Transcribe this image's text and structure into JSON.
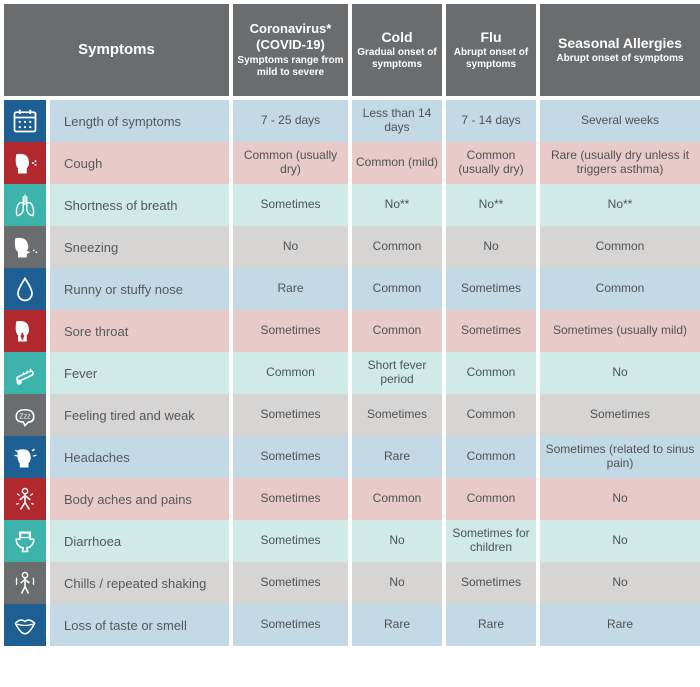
{
  "colors": {
    "header_bg": "#6a6c6e",
    "row_blue": "#c3d9e5",
    "row_pink": "#e8cbc8",
    "row_teal": "#d0eae7",
    "row_grey": "#d6d5d4",
    "icon_navy": "#1d5e93",
    "icon_red": "#b2282f",
    "icon_teal": "#3cb4ac",
    "icon_grey": "#6a6c6e"
  },
  "header": {
    "symptoms": {
      "title": "Symptoms",
      "title_fontsize": 15
    },
    "col1": {
      "title": "Coronavirus*\n(COVID-19)",
      "sub": "Symptoms range from mild to severe",
      "title_fontsize": 13
    },
    "col2": {
      "title": "Cold",
      "sub": "Gradual onset of symptoms",
      "title_fontsize": 14
    },
    "col3": {
      "title": "Flu",
      "sub": "Abrupt onset of symptoms",
      "title_fontsize": 14
    },
    "col4": {
      "title": "Seasonal Allergies",
      "sub": "Abrupt onset of symptoms",
      "title_fontsize": 14
    }
  },
  "rows": [
    {
      "icon": "calendar",
      "icon_bg": "icon_navy",
      "row_bg": "row_blue",
      "label": "Length of symptoms",
      "c1": "7 - 25 days",
      "c2": "Less than 14 days",
      "c3": "7 - 14 days",
      "c4": "Several weeks"
    },
    {
      "icon": "cough",
      "icon_bg": "icon_red",
      "row_bg": "row_pink",
      "label": "Cough",
      "c1": "Common (usually dry)",
      "c2": "Common (mild)",
      "c3": "Common (usually dry)",
      "c4": "Rare (usually dry unless it triggers asthma)"
    },
    {
      "icon": "lungs",
      "icon_bg": "icon_teal",
      "row_bg": "row_teal",
      "label": "Shortness of breath",
      "c1": "Sometimes",
      "c2": "No**",
      "c3": "No**",
      "c4": "No**"
    },
    {
      "icon": "sneeze",
      "icon_bg": "icon_grey",
      "row_bg": "row_grey",
      "label": "Sneezing",
      "c1": "No",
      "c2": "Common",
      "c3": "No",
      "c4": "Common"
    },
    {
      "icon": "drop",
      "icon_bg": "icon_navy",
      "row_bg": "row_blue",
      "label": "Runny or stuffy nose",
      "c1": "Rare",
      "c2": "Common",
      "c3": "Sometimes",
      "c4": "Common"
    },
    {
      "icon": "throat",
      "icon_bg": "icon_red",
      "row_bg": "row_pink",
      "label": "Sore throat",
      "c1": "Sometimes",
      "c2": "Common",
      "c3": "Sometimes",
      "c4": "Sometimes (usually mild)"
    },
    {
      "icon": "thermo",
      "icon_bg": "icon_teal",
      "row_bg": "row_teal",
      "label": "Fever",
      "c1": "Common",
      "c2": "Short fever period",
      "c3": "Common",
      "c4": "No"
    },
    {
      "icon": "tired",
      "icon_bg": "icon_grey",
      "row_bg": "row_grey",
      "label": "Feeling tired and weak",
      "c1": "Sometimes",
      "c2": "Sometimes",
      "c3": "Common",
      "c4": "Sometimes"
    },
    {
      "icon": "head",
      "icon_bg": "icon_navy",
      "row_bg": "row_blue",
      "label": "Headaches",
      "c1": "Sometimes",
      "c2": "Rare",
      "c3": "Common",
      "c4": "Sometimes (related to sinus pain)"
    },
    {
      "icon": "body",
      "icon_bg": "icon_red",
      "row_bg": "row_pink",
      "label": "Body aches and pains",
      "c1": "Sometimes",
      "c2": "Common",
      "c3": "Common",
      "c4": "No"
    },
    {
      "icon": "toilet",
      "icon_bg": "icon_teal",
      "row_bg": "row_teal",
      "label": "Diarrhoea",
      "c1": "Sometimes",
      "c2": "No",
      "c3": "Sometimes for children",
      "c4": "No"
    },
    {
      "icon": "chills",
      "icon_bg": "icon_grey",
      "row_bg": "row_grey",
      "label": "Chills / repeated shaking",
      "c1": "Sometimes",
      "c2": "No",
      "c3": "Sometimes",
      "c4": "No"
    },
    {
      "icon": "mouth",
      "icon_bg": "icon_navy",
      "row_bg": "row_blue",
      "label": "Loss of taste or smell",
      "c1": "Sometimes",
      "c2": "Rare",
      "c3": "Rare",
      "c4": "Rare"
    }
  ]
}
